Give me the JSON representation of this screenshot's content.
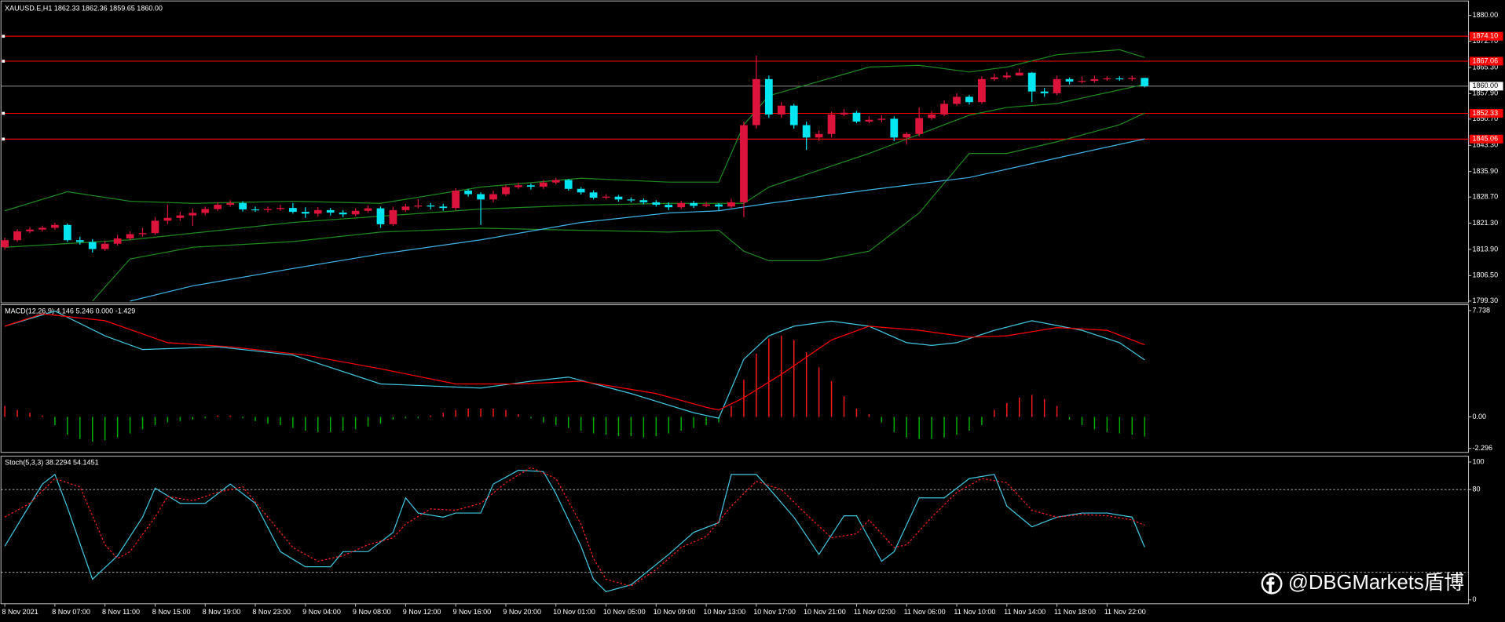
{
  "chart_data": [
    {
      "type": "candlestick",
      "title": "XAUUSD.E,H1  1862.33 1862.36 1859.65 1860.00",
      "categories": [
        "8 Nov 2021",
        null,
        null,
        null,
        "8 Nov 07:00",
        null,
        null,
        null,
        "8 Nov 11:00",
        null,
        null,
        null,
        "8 Nov 15:00",
        null,
        null,
        null,
        "8 Nov 19:00",
        null,
        null,
        null,
        "8 Nov 23:00",
        null,
        null,
        null,
        "9 Nov 04:00",
        null,
        null,
        null,
        "9 Nov 08:00",
        null,
        null,
        null,
        "9 Nov 12:00",
        null,
        null,
        null,
        "9 Nov 16:00",
        null,
        null,
        null,
        "9 Nov 20:00",
        null,
        null,
        null,
        "10 Nov 01:00",
        null,
        null,
        null,
        "10 Nov 05:00",
        null,
        null,
        null,
        "10 Nov 09:00",
        null,
        null,
        null,
        "10 Nov 13:00",
        null,
        null,
        null,
        "10 Nov 17:00",
        null,
        null,
        null,
        "10 Nov 21:00",
        null,
        null,
        null,
        "11 Nov 02:00",
        null,
        null,
        null,
        "11 Nov 06:00",
        null,
        null,
        null,
        "11 Nov 10:00",
        null,
        null,
        null,
        "11 Nov 14:00",
        null,
        null,
        null,
        "11 Nov 18:00",
        null,
        null,
        null,
        "11 Nov 22:00",
        null,
        null,
        null
      ],
      "open": [
        1814.5,
        1816.5,
        1819.0,
        1819.5,
        1820.0,
        1820.8,
        1816.5,
        1816.0,
        1814.0,
        1815.5,
        1817.0,
        1818.2,
        1818.5,
        1822.0,
        1822.8,
        1823.5,
        1824.2,
        1825.3,
        1826.5,
        1827.0,
        1825.2,
        1825.0,
        1825.3,
        1825.6,
        1824.5,
        1824.0,
        1825.0,
        1824.3,
        1823.8,
        1824.8,
        1825.5,
        1821.0,
        1825.0,
        1826.0,
        1826.3,
        1826.0,
        1825.6,
        1830.5,
        1829.5,
        1828.0,
        1829.5,
        1831.5,
        1832.0,
        1831.6,
        1832.8,
        1833.5,
        1831.0,
        1830.0,
        1828.5,
        1828.8,
        1828.0,
        1827.8,
        1827.2,
        1826.5,
        1825.8,
        1827.0,
        1826.2,
        1826.6,
        1826.0,
        1827.2,
        1849.0,
        1862.0,
        1852.0,
        1854.5,
        1849.0,
        1845.5,
        1846.5,
        1852.0,
        1852.5,
        1850.0,
        1850.5,
        1850.8,
        1845.5,
        1846.5,
        1851.0,
        1852.0,
        1855.0,
        1857.0,
        1855.5,
        1862.0,
        1862.5,
        1863.0,
        1863.8,
        1858.5,
        1858.0,
        1862.0,
        1861.3,
        1861.5,
        1862.0,
        1862.2,
        1862.0,
        1862.33
      ],
      "high": [
        1817.2,
        1819.6,
        1820.2,
        1820.6,
        1821.5,
        1821.2,
        1817.5,
        1816.8,
        1816.3,
        1818.0,
        1819.0,
        1820.0,
        1823.0,
        1826.5,
        1824.5,
        1825.5,
        1826.0,
        1827.2,
        1827.8,
        1827.5,
        1826.0,
        1826.0,
        1826.5,
        1827.0,
        1825.8,
        1825.8,
        1825.6,
        1825.0,
        1825.5,
        1826.3,
        1826.0,
        1826.0,
        1826.8,
        1828.0,
        1827.0,
        1826.8,
        1831.2,
        1831.0,
        1830.0,
        1830.5,
        1832.0,
        1832.8,
        1832.5,
        1833.5,
        1834.0,
        1833.8,
        1831.5,
        1830.6,
        1829.5,
        1829.3,
        1828.6,
        1828.3,
        1827.8,
        1827.2,
        1827.6,
        1827.6,
        1827.3,
        1827.0,
        1828.2,
        1850.0,
        1868.6,
        1863.0,
        1855.5,
        1855.0,
        1850.0,
        1847.5,
        1852.8,
        1853.5,
        1853.0,
        1851.5,
        1851.8,
        1851.5,
        1847.0,
        1854.0,
        1853.0,
        1856.0,
        1858.0,
        1857.5,
        1862.8,
        1863.5,
        1864.0,
        1865.0,
        1864.0,
        1859.5,
        1863.0,
        1862.5,
        1862.8,
        1863.0,
        1862.8,
        1862.8,
        1863.0,
        1862.36
      ],
      "low": [
        1813.8,
        1816.0,
        1818.5,
        1819.0,
        1819.5,
        1816.0,
        1815.2,
        1813.0,
        1813.5,
        1815.0,
        1816.5,
        1817.5,
        1818.0,
        1821.0,
        1822.0,
        1820.5,
        1823.5,
        1824.8,
        1826.0,
        1824.6,
        1824.5,
        1824.4,
        1824.8,
        1824.0,
        1822.8,
        1823.2,
        1823.5,
        1823.0,
        1823.3,
        1824.2,
        1820.0,
        1820.5,
        1824.5,
        1825.5,
        1825.2,
        1824.8,
        1825.0,
        1828.8,
        1820.8,
        1827.2,
        1829.0,
        1831.0,
        1830.8,
        1831.0,
        1832.3,
        1830.5,
        1829.4,
        1828.0,
        1828.0,
        1827.4,
        1827.2,
        1826.6,
        1826.0,
        1825.0,
        1825.3,
        1825.6,
        1825.8,
        1824.8,
        1825.6,
        1823.0,
        1848.0,
        1851.0,
        1851.0,
        1848.0,
        1842.0,
        1844.5,
        1845.5,
        1851.5,
        1849.5,
        1849.5,
        1849.8,
        1844.5,
        1843.5,
        1845.8,
        1850.5,
        1851.5,
        1854.5,
        1854.8,
        1855.0,
        1861.5,
        1862.0,
        1863.0,
        1855.5,
        1857.0,
        1857.5,
        1860.5,
        1860.8,
        1861.0,
        1861.5,
        1861.5,
        1861.5,
        1859.65
      ],
      "close": [
        1816.5,
        1819.0,
        1819.5,
        1820.0,
        1820.8,
        1816.5,
        1816.0,
        1814.0,
        1815.5,
        1817.0,
        1818.2,
        1818.5,
        1822.0,
        1822.8,
        1823.5,
        1824.2,
        1825.3,
        1826.5,
        1827.0,
        1825.2,
        1825.0,
        1825.3,
        1825.6,
        1824.5,
        1824.0,
        1825.0,
        1824.3,
        1823.8,
        1824.8,
        1825.5,
        1821.0,
        1825.0,
        1826.0,
        1826.3,
        1826.0,
        1825.6,
        1830.5,
        1829.5,
        1828.0,
        1829.5,
        1831.5,
        1832.0,
        1831.6,
        1832.8,
        1833.5,
        1831.0,
        1830.0,
        1828.5,
        1828.8,
        1828.0,
        1827.8,
        1827.2,
        1826.5,
        1825.8,
        1827.0,
        1826.2,
        1826.6,
        1826.0,
        1827.2,
        1849.0,
        1862.0,
        1852.0,
        1854.5,
        1849.0,
        1845.5,
        1846.5,
        1852.0,
        1852.5,
        1850.0,
        1850.5,
        1850.8,
        1845.5,
        1846.5,
        1851.0,
        1852.0,
        1855.0,
        1857.0,
        1855.5,
        1862.0,
        1862.5,
        1863.0,
        1863.8,
        1858.5,
        1858.0,
        1862.0,
        1861.3,
        1861.5,
        1862.0,
        1862.2,
        1862.0,
        1862.33,
        1860.0
      ],
      "up_color": "#dc143c",
      "down_color": "#00e5f0",
      "ylim": [
        1798.8,
        1883.8
      ],
      "yticks": [
        {
          "value": 1880.0,
          "label": "1880.00"
        },
        {
          "value": 1872.7,
          "label": "1872.70"
        },
        {
          "value": 1865.3,
          "label": "1865.30"
        },
        {
          "value": 1857.9,
          "label": "1857.90"
        },
        {
          "value": 1850.7,
          "label": "1850.70"
        },
        {
          "value": 1843.3,
          "label": "1843.30"
        },
        {
          "value": 1835.9,
          "label": "1835.90"
        },
        {
          "value": 1828.7,
          "label": "1828.70"
        },
        {
          "value": 1821.3,
          "label": "1821.30"
        },
        {
          "value": 1813.9,
          "label": "1813.90"
        },
        {
          "value": 1806.5,
          "label": "1806.50"
        },
        {
          "value": 1799.3,
          "label": "1799.30"
        }
      ],
      "hlines": [
        {
          "value": 1874.1,
          "label": "1874.10",
          "color": "#ff0000"
        },
        {
          "value": 1867.06,
          "label": "1867.06",
          "color": "#ff0000"
        },
        {
          "value": 1852.33,
          "label": "1852.33",
          "color": "#ff0000"
        },
        {
          "value": 1845.06,
          "label": "1845.06",
          "color": "#ff0000"
        }
      ],
      "current_price": {
        "value": 1860.0,
        "label": "1860.00",
        "color": "#c0c0c0"
      },
      "overlays": [
        {
          "color": "#1e8a1e",
          "x": [
            0,
            5,
            10,
            15,
            23,
            30,
            38,
            46,
            53,
            57,
            59,
            61,
            69,
            73,
            77,
            80,
            84,
            89,
            91
          ],
          "values": [
            1824.8,
            1830.2,
            1827.5,
            1826.9,
            1827.5,
            1826.9,
            1831.5,
            1834.0,
            1832.9,
            1832.9,
            1849.1,
            1857.3,
            1865.4,
            1865.9,
            1864.0,
            1865.4,
            1868.9,
            1870.3,
            1868.1
          ]
        },
        {
          "color": "#1e8a1e",
          "x": [
            0,
            10,
            23,
            38,
            46,
            53,
            57,
            59,
            61,
            69,
            77,
            80,
            84,
            91
          ],
          "values": [
            1814.5,
            1816.6,
            1821.5,
            1825.3,
            1826.4,
            1826.9,
            1826.9,
            1826.9,
            1831.5,
            1841.0,
            1851.8,
            1854.0,
            1855.1,
            1860.5
          ]
        },
        {
          "color": "#1e8a1e",
          "x": [
            7,
            10,
            15,
            23,
            30,
            38,
            46,
            53,
            57,
            59,
            61,
            65,
            69,
            73,
            77,
            80,
            84,
            89,
            91
          ],
          "values": [
            1799.3,
            1811.2,
            1814.5,
            1816.1,
            1818.8,
            1819.9,
            1819.3,
            1818.8,
            1819.3,
            1813.4,
            1810.7,
            1810.7,
            1813.4,
            1824.2,
            1841.0,
            1841.0,
            1844.3,
            1849.1,
            1852.4
          ]
        },
        {
          "color": "#3fb4e8",
          "x": [
            10,
            15,
            23,
            30,
            38,
            46,
            53,
            57,
            61,
            69,
            77,
            84,
            91
          ],
          "values": [
            1799.3,
            1803.6,
            1808.5,
            1812.6,
            1816.6,
            1821.5,
            1824.2,
            1824.8,
            1826.9,
            1830.7,
            1834.2,
            1839.7,
            1845.1
          ]
        }
      ]
    },
    {
      "type": "macd",
      "title": "MACD(12,26,9) 4.146 5.246 0.000 -1.429",
      "histogram": {
        "up_color": "#ff1a1a",
        "down_color": "#00b000",
        "values": [
          0.8,
          0.5,
          0.3,
          0.1,
          -0.6,
          -1.3,
          -1.6,
          -1.8,
          -1.7,
          -1.5,
          -1.2,
          -0.9,
          -0.6,
          -0.4,
          -0.3,
          -0.2,
          -0.1,
          0.1,
          0.1,
          -0.1,
          -0.3,
          -0.5,
          -0.6,
          -0.8,
          -1.0,
          -1.1,
          -1.1,
          -1.0,
          -0.9,
          -0.7,
          -0.5,
          -0.2,
          -0.1,
          -0.1,
          0.1,
          0.3,
          0.5,
          0.6,
          0.6,
          0.6,
          0.5,
          0.2,
          -0.1,
          -0.4,
          -0.6,
          -0.8,
          -1.0,
          -1.2,
          -1.3,
          -1.4,
          -1.4,
          -1.5,
          -1.4,
          -1.2,
          -1.0,
          -0.8,
          -0.6,
          -0.4,
          0.8,
          2.7,
          4.6,
          5.7,
          5.9,
          5.6,
          4.7,
          3.6,
          2.6,
          1.5,
          0.6,
          0.2,
          -0.4,
          -1.1,
          -1.5,
          -1.6,
          -1.6,
          -1.5,
          -1.3,
          -1.0,
          -0.6,
          0.5,
          1.0,
          1.4,
          1.6,
          1.3,
          0.8,
          -0.2,
          -0.6,
          -0.9,
          -1.1,
          -1.2,
          -1.3,
          -1.429
        ]
      },
      "lines": [
        {
          "color": "#40c8e0",
          "x": [
            0,
            4,
            8,
            11,
            17,
            23,
            30,
            38,
            42,
            45,
            50,
            55,
            57,
            59,
            61,
            63,
            66,
            69,
            72,
            74,
            76,
            79,
            82,
            86,
            89,
            91
          ],
          "values": [
            6.6,
            7.7,
            5.9,
            4.9,
            5.1,
            4.5,
            2.4,
            2.1,
            2.6,
            2.9,
            1.7,
            0.3,
            -0.1,
            4.2,
            5.9,
            6.6,
            6.97,
            6.6,
            5.4,
            5.2,
            5.4,
            6.3,
            7.0,
            6.3,
            5.4,
            4.146
          ]
        },
        {
          "color": "#ff0000",
          "x": [
            0,
            3,
            8,
            13,
            18,
            24,
            30,
            36,
            41,
            46,
            52,
            56,
            57,
            59,
            62,
            66,
            69,
            73,
            77,
            80,
            84,
            88,
            91
          ],
          "values": [
            6.6,
            7.5,
            7.0,
            5.4,
            5.1,
            4.5,
            3.5,
            2.4,
            2.4,
            2.6,
            1.7,
            0.7,
            0.5,
            1.4,
            3.1,
            5.6,
            6.6,
            6.3,
            5.8,
            5.9,
            6.5,
            6.3,
            5.246
          ]
        }
      ],
      "ylim": [
        -2.58,
        8.16
      ],
      "yticks": [
        7.738,
        {
          "value": 0,
          "label": "0.00"
        },
        -2.296
      ]
    },
    {
      "type": "stochastic",
      "title": "Stoch(5,3,3) 38.2294 54.1451",
      "lines": [
        {
          "color": "#40c8e0",
          "dashed": false,
          "x": [
            0,
            3,
            4,
            5,
            7,
            9,
            11,
            12,
            14,
            16,
            18,
            20,
            22,
            24,
            26,
            27,
            29,
            31,
            32,
            33,
            35,
            36,
            38,
            39,
            41,
            43,
            44,
            46,
            47,
            48,
            50,
            53,
            55,
            57,
            58,
            60,
            61,
            63,
            65,
            67,
            68,
            70,
            71,
            73,
            75,
            77,
            79,
            80,
            82,
            84,
            86,
            88,
            90,
            91
          ],
          "values": [
            39,
            84,
            91,
            67,
            15,
            32,
            60,
            81,
            70,
            70,
            84,
            70,
            35,
            24,
            24,
            35,
            35,
            49,
            74,
            63,
            60,
            63,
            63,
            84,
            94,
            93,
            77,
            39,
            15,
            6,
            11,
            33,
            49,
            56,
            91,
            91,
            81,
            60,
            33,
            61,
            61,
            28,
            35,
            74,
            74,
            88,
            91,
            68,
            53,
            60,
            63,
            63,
            60,
            38.2294
          ]
        },
        {
          "color": "#ff2020",
          "dashed": true,
          "x": [
            0,
            2,
            4,
            6,
            8,
            9,
            10,
            12,
            13,
            15,
            17,
            19,
            21,
            23,
            25,
            27,
            29,
            31,
            32,
            34,
            36,
            38,
            40,
            42,
            44,
            46,
            47,
            48,
            50,
            52,
            54,
            56,
            58,
            60,
            62,
            64,
            66,
            68,
            69,
            71,
            72,
            74,
            76,
            78,
            80,
            82,
            84,
            86,
            88,
            90,
            91
          ],
          "values": [
            60,
            70,
            88,
            82,
            40,
            30,
            35,
            60,
            75,
            72,
            78,
            82,
            60,
            38,
            28,
            32,
            40,
            45,
            55,
            66,
            65,
            70,
            85,
            96,
            88,
            55,
            30,
            15,
            10,
            22,
            38,
            46,
            68,
            86,
            80,
            62,
            45,
            48,
            58,
            38,
            40,
            60,
            78,
            88,
            85,
            65,
            60,
            62,
            61,
            58,
            54.1451
          ]
        }
      ],
      "levels": [
        80,
        20
      ],
      "ylim": [
        -2.8,
        104.2
      ],
      "yticks": [
        100,
        80,
        0
      ]
    }
  ],
  "watermark": "@DBGMarkets盾博"
}
